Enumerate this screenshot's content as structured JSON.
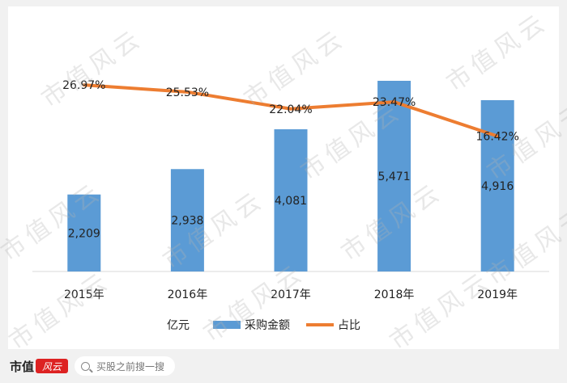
{
  "chart_data": {
    "type": "bar+line",
    "categories": [
      "2015年",
      "2016年",
      "2017年",
      "2018年",
      "2019年"
    ],
    "bar_series": {
      "name": "采购金额",
      "values": [
        2209,
        2938,
        4081,
        5471,
        4916
      ],
      "labels": [
        "2,209",
        "2,938",
        "4,081",
        "5,471",
        "4,916"
      ],
      "color": "#5b9bd5",
      "ylim": [
        0,
        5471
      ]
    },
    "line_series": {
      "name": "占比",
      "values": [
        26.97,
        25.53,
        22.04,
        23.47,
        16.42
      ],
      "labels": [
        "26.97%",
        "25.53%",
        "22.04%",
        "23.47%",
        "16.42%"
      ],
      "color": "#ed7d31",
      "ylim": [
        12,
        27
      ]
    },
    "unit_label": "亿元",
    "legend_position": "bottom"
  },
  "watermark": "市值风云",
  "footer": {
    "logo_text": "市值",
    "logo_badge": "风云",
    "search_placeholder": "买股之前搜一搜"
  }
}
